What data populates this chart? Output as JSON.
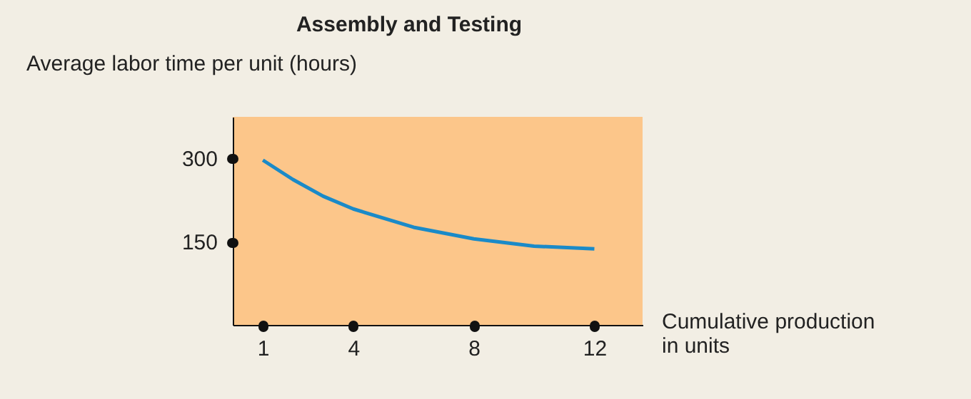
{
  "chart_data": {
    "type": "line",
    "title": "Assembly and Testing",
    "ylabel": "Average labor time per unit (hours)",
    "xlabel": "Cumulative production\nin units",
    "x": [
      1,
      2,
      3,
      4,
      6,
      8,
      10,
      12
    ],
    "series": [
      {
        "color": "#1a8ac8",
        "values": [
          297,
          262,
          232,
          209,
          176,
          155,
          142,
          137
        ]
      }
    ],
    "xlim": [
      0,
      13.6
    ],
    "ylim": [
      0,
      375
    ],
    "xticks": [
      1,
      4,
      8,
      12
    ],
    "yticks": [
      150,
      300
    ],
    "grid": false,
    "legend": false,
    "marker": "none",
    "line_style": "solid"
  }
}
